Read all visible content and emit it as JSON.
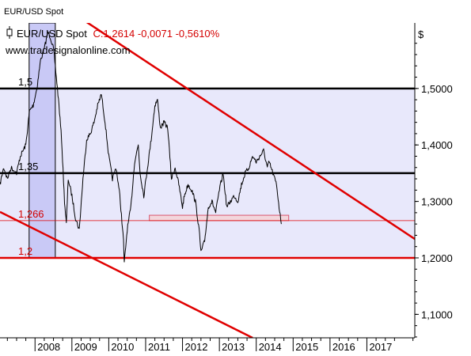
{
  "window": {
    "title": "EUR/USD Spot"
  },
  "colors": {
    "background": "#ffffff",
    "band_fill": "#e8e8fb",
    "price": "#000000",
    "trend": "#e00000",
    "level_black": "#000000",
    "level_red": "#e00000",
    "label_red": "#d40000",
    "highlight_fill": "#c9c9f6",
    "box_fill": "#f3d6dc",
    "box_stroke": "#d8566e"
  },
  "chart_data": {
    "type": "line",
    "title": "EUR/USD Spot",
    "quote_label": "C:1,2614 -0,0071 -0,5610%",
    "watermark": "www.tradesignalonline.com",
    "currency_label": "$",
    "xlim": [
      2007.05,
      2018.3
    ],
    "ylim": [
      1.0585,
      1.616
    ],
    "x_ticks": [
      "2008",
      "2009",
      "2010",
      "2011",
      "2012",
      "2013",
      "2014",
      "2015",
      "2016",
      "2017"
    ],
    "x_tick_values": [
      2008,
      2009,
      2010,
      2011,
      2012,
      2013,
      2014,
      2015,
      2016,
      2017
    ],
    "y_ticks": [
      "1,1000",
      "1,2000",
      "1,3000",
      "1,4000",
      "1,5000"
    ],
    "y_tick_values": [
      1.1,
      1.2,
      1.3,
      1.4,
      1.5
    ],
    "levels": [
      {
        "label": "1,5",
        "value": 1.5,
        "color": "black"
      },
      {
        "label": "1,35",
        "value": 1.35,
        "color": "black"
      },
      {
        "label": "1,266",
        "value": 1.266,
        "color": "red-thin"
      },
      {
        "label": "1,2",
        "value": 1.2,
        "color": "red"
      }
    ],
    "band": [
      1.2,
      1.5
    ],
    "highlight_period": {
      "x": [
        2007.84,
        2008.55
      ],
      "y": [
        1.2,
        1.616
      ]
    },
    "support_box": {
      "x": [
        2011.1,
        2014.88
      ],
      "y": [
        1.266,
        1.2755
      ]
    },
    "trendlines": [
      {
        "name": "upper",
        "x": [
          2007.05,
          2018.3
        ],
        "y": [
          1.7188,
          1.2335
        ]
      },
      {
        "name": "lower",
        "x": [
          2007.05,
          2013.9
        ],
        "y": [
          1.2814,
          1.0585
        ]
      }
    ],
    "series": [
      {
        "x": [
          2007.05,
          2007.15,
          2007.25,
          2007.35,
          2007.5,
          2007.6,
          2007.75,
          2007.85,
          2007.95,
          2008.05,
          2008.15,
          2008.25,
          2008.35,
          2008.42,
          2008.5,
          2008.55,
          2008.65,
          2008.72,
          2008.8,
          2008.85,
          2008.9,
          2009.0,
          2009.1,
          2009.2,
          2009.3,
          2009.4,
          2009.5,
          2009.6,
          2009.7,
          2009.8,
          2009.9,
          2010.0,
          2010.1,
          2010.2,
          2010.3,
          2010.4,
          2010.42,
          2010.5,
          2010.6,
          2010.7,
          2010.8,
          2010.85,
          2010.95,
          2011.05,
          2011.15,
          2011.25,
          2011.32,
          2011.4,
          2011.5,
          2011.6,
          2011.7,
          2011.8,
          2011.9,
          2012.0,
          2012.05,
          2012.15,
          2012.25,
          2012.35,
          2012.45,
          2012.5,
          2012.6,
          2012.7,
          2012.8,
          2012.9,
          2013.0,
          2013.1,
          2013.2,
          2013.3,
          2013.4,
          2013.5,
          2013.6,
          2013.7,
          2013.8,
          2013.9,
          2014.0,
          2014.1,
          2014.2,
          2014.3,
          2014.35,
          2014.45,
          2014.55,
          2014.62,
          2014.68
        ],
        "y": [
          1.33,
          1.36,
          1.34,
          1.36,
          1.35,
          1.38,
          1.4,
          1.46,
          1.47,
          1.5,
          1.55,
          1.57,
          1.6,
          1.59,
          1.57,
          1.54,
          1.47,
          1.41,
          1.3,
          1.26,
          1.34,
          1.31,
          1.27,
          1.25,
          1.34,
          1.41,
          1.42,
          1.44,
          1.47,
          1.49,
          1.44,
          1.38,
          1.34,
          1.36,
          1.31,
          1.23,
          1.19,
          1.25,
          1.29,
          1.37,
          1.4,
          1.35,
          1.31,
          1.36,
          1.41,
          1.47,
          1.48,
          1.43,
          1.44,
          1.43,
          1.34,
          1.36,
          1.33,
          1.29,
          1.31,
          1.33,
          1.32,
          1.3,
          1.25,
          1.21,
          1.23,
          1.29,
          1.3,
          1.28,
          1.32,
          1.35,
          1.29,
          1.3,
          1.31,
          1.3,
          1.33,
          1.35,
          1.36,
          1.38,
          1.37,
          1.38,
          1.39,
          1.36,
          1.37,
          1.35,
          1.33,
          1.29,
          1.26
        ]
      }
    ]
  }
}
